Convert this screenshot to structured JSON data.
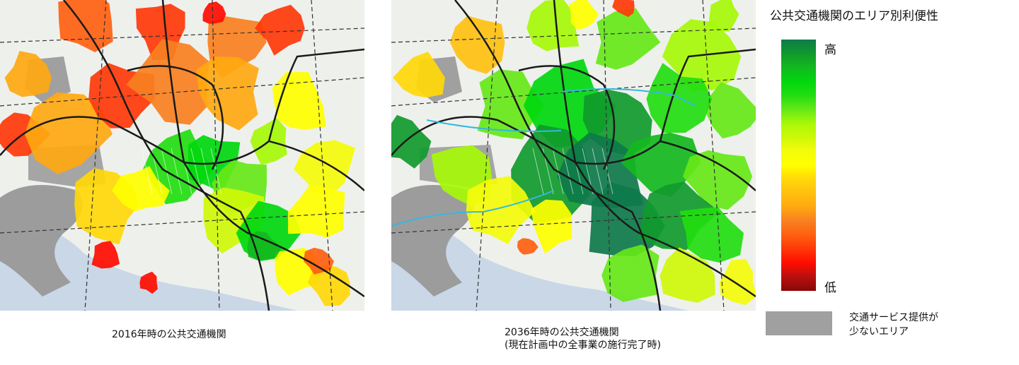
{
  "maps": [
    {
      "caption_line1": "2016年時の公共交通機関",
      "caption_line2": ""
    },
    {
      "caption_line1": "2036年時の公共交通機関",
      "caption_line2": "(現在計画中の全事業の施行完了時)"
    }
  ],
  "legend": {
    "title": "公共交通機関のエリア別利便性",
    "high_label": "高",
    "low_label": "低",
    "ramp_colors": [
      "#0e7a4a",
      "#109a2c",
      "#13b81e",
      "#00d80e",
      "#22dd10",
      "#66e818",
      "#a6f808",
      "#cef808",
      "#f4fc0a",
      "#ffff00",
      "#ffd808",
      "#ffc010",
      "#ffa810",
      "#f88020",
      "#ff6010",
      "#ff3808",
      "#ff0c00",
      "#b81010",
      "#880808"
    ],
    "no_service_color": "#a0a0a0",
    "no_service_label_line1": "交通サービス提供が",
    "no_service_label_line2": "少ないエリア"
  }
}
